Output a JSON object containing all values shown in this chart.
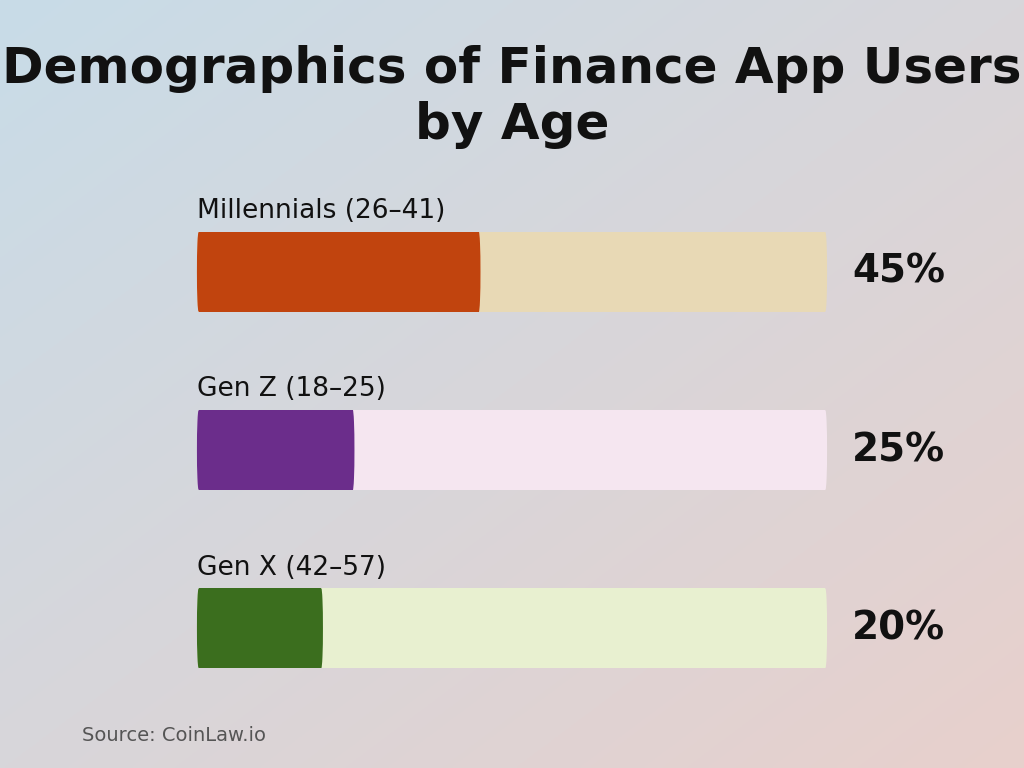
{
  "title": "Demographics of Finance App Users\nby Age",
  "categories": [
    "Millennials (26–41)",
    "Gen Z (18–25)",
    "Gen X (42–57)"
  ],
  "values": [
    45,
    25,
    20
  ],
  "max_value": 100,
  "bar_colors": [
    "#C1440E",
    "#6B2D8B",
    "#3B6E1E"
  ],
  "bg_colors": [
    "#E8D9B5",
    "#F5E6F0",
    "#E8F0D0"
  ],
  "percentage_labels": [
    "45%",
    "25%",
    "20%"
  ],
  "source_text": "Source: CoinLaw.io",
  "background_color": "#F0E8E0",
  "background_top_left": "#C8DCE8",
  "background_bottom_right": "#E8D0CC",
  "title_fontsize": 36,
  "label_fontsize": 19,
  "pct_fontsize": 28,
  "source_fontsize": 14
}
